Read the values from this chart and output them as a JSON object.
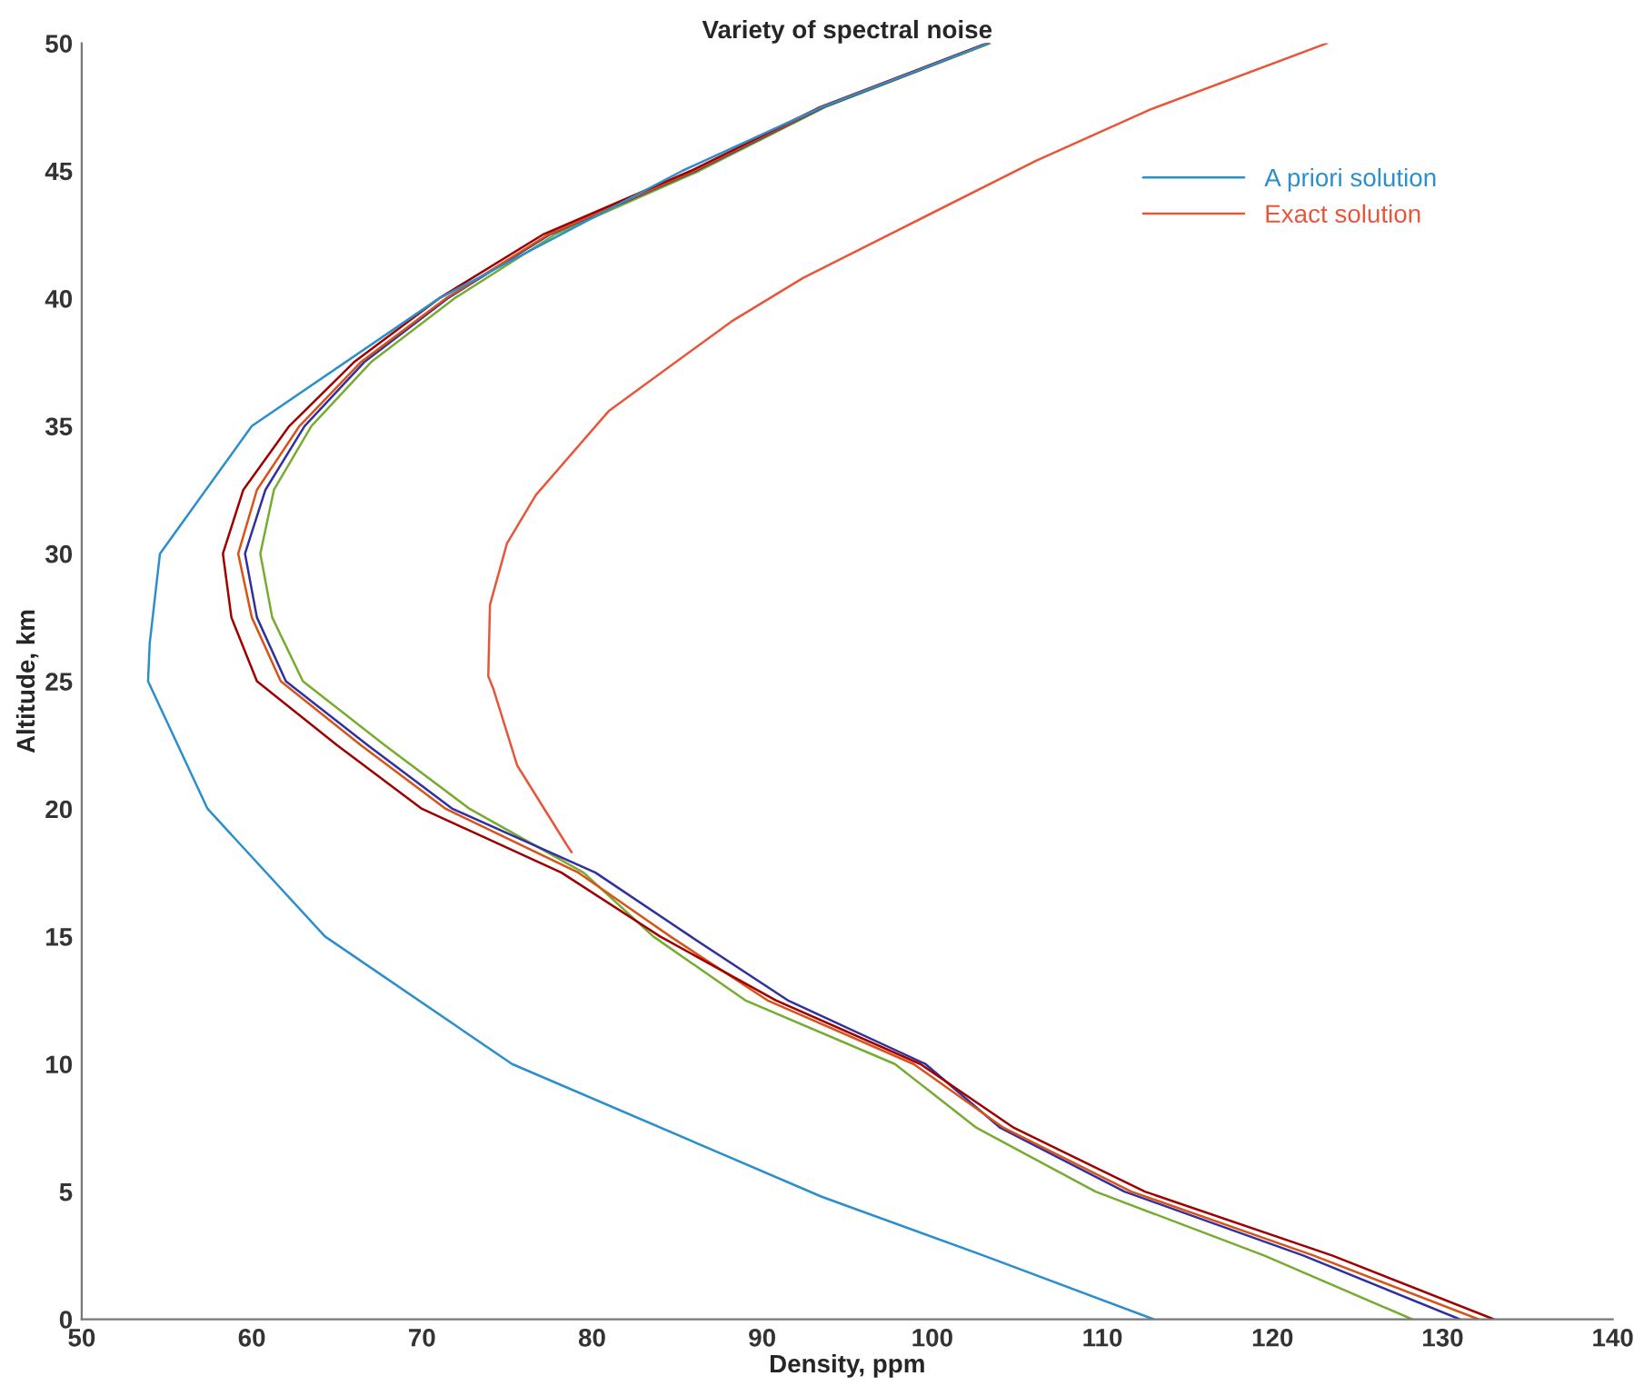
{
  "chart_data": {
    "type": "line",
    "title": "Variety of spectral noise",
    "xlabel": "Density, ppm",
    "ylabel": "Altitude, km",
    "xlim": [
      50,
      140
    ],
    "xticks": [
      50,
      60,
      70,
      80,
      90,
      100,
      110,
      120,
      130,
      140
    ],
    "ylim": [
      0,
      50
    ],
    "yticks": [
      0,
      5,
      10,
      15,
      20,
      25,
      30,
      35,
      40,
      45,
      50
    ],
    "grid": false,
    "legend": "top right",
    "marker": "none",
    "line_style": "solid",
    "series": [
      {
        "color": "#77ac30",
        "x": [
          128.2,
          119.5,
          109.6,
          102.6,
          97.8,
          89.0,
          83.6,
          79.5,
          72.8,
          67.8,
          63.0,
          61.2,
          60.5,
          61.3,
          63.5,
          67.0,
          71.9,
          77.8,
          86.3,
          93.7,
          103.4
        ],
        "values": [
          0,
          2.5,
          5,
          7.5,
          10,
          12.5,
          15,
          17.5,
          20,
          22.5,
          25,
          27.5,
          30,
          32.5,
          35,
          37.5,
          40,
          42.5,
          45,
          47.5,
          50
        ]
      },
      {
        "color": "#3030a0",
        "x": [
          131.0,
          121.8,
          111.3,
          104.0,
          99.6,
          91.5,
          85.8,
          80.2,
          71.8,
          66.8,
          62.0,
          60.3,
          59.6,
          60.8,
          63.1,
          66.6,
          71.5,
          77.5,
          86.1,
          93.6,
          103.3
        ],
        "values": [
          0,
          2.5,
          5,
          7.5,
          10,
          12.5,
          15,
          17.5,
          20,
          22.5,
          25,
          27.5,
          30,
          32.5,
          35,
          37.5,
          40,
          42.5,
          45,
          47.5,
          50
        ]
      },
      {
        "color": "#d95319",
        "x": [
          132.1,
          122.4,
          111.7,
          104.2,
          98.9,
          90.3,
          84.6,
          79.2,
          71.4,
          66.4,
          61.7,
          60.0,
          59.2,
          60.3,
          62.8,
          66.4,
          71.4,
          77.4,
          86.0,
          93.5,
          103.3
        ],
        "values": [
          0,
          2.5,
          5,
          7.5,
          10,
          12.5,
          15,
          17.5,
          20,
          22.5,
          25,
          27.5,
          30,
          32.5,
          35,
          37.5,
          40,
          42.5,
          45,
          47.5,
          50
        ]
      },
      {
        "color": "#a00000",
        "x": [
          133.0,
          123.5,
          112.5,
          104.8,
          99.3,
          90.8,
          84.0,
          78.2,
          70.0,
          65.0,
          60.3,
          58.8,
          58.3,
          59.5,
          62.2,
          66.0,
          71.0,
          77.1,
          85.8,
          93.4,
          103.2
        ],
        "values": [
          0,
          2.5,
          5,
          7.5,
          10,
          12.5,
          15,
          17.5,
          20,
          22.5,
          25,
          27.5,
          30,
          32.5,
          35,
          37.5,
          40,
          42.5,
          45,
          47.5,
          50
        ]
      },
      {
        "name": "A priori solution",
        "color": "#2a8fcc",
        "x": [
          113.0,
          103.0,
          93.5,
          75.3,
          64.3,
          57.4,
          53.9,
          54.0,
          54.6,
          60.0,
          71.0,
          85.3,
          93.5,
          103.3
        ],
        "values": [
          0,
          2.5,
          4.8,
          10,
          15,
          20,
          25,
          26.5,
          30,
          35,
          40,
          45,
          47.5,
          50
        ]
      },
      {
        "name": "Exact solution",
        "color": "#e8563a",
        "x": [
          78.8,
          78.5,
          75.6,
          74.2,
          73.9,
          74.0,
          75.0,
          76.7,
          81.0,
          88.2,
          92.4,
          106.1,
          112.8,
          123.2
        ],
        "values": [
          18.3,
          18.6,
          21.7,
          24.7,
          25.2,
          28.0,
          30.4,
          32.3,
          35.6,
          39.1,
          40.8,
          45.4,
          47.4,
          50
        ]
      }
    ]
  }
}
